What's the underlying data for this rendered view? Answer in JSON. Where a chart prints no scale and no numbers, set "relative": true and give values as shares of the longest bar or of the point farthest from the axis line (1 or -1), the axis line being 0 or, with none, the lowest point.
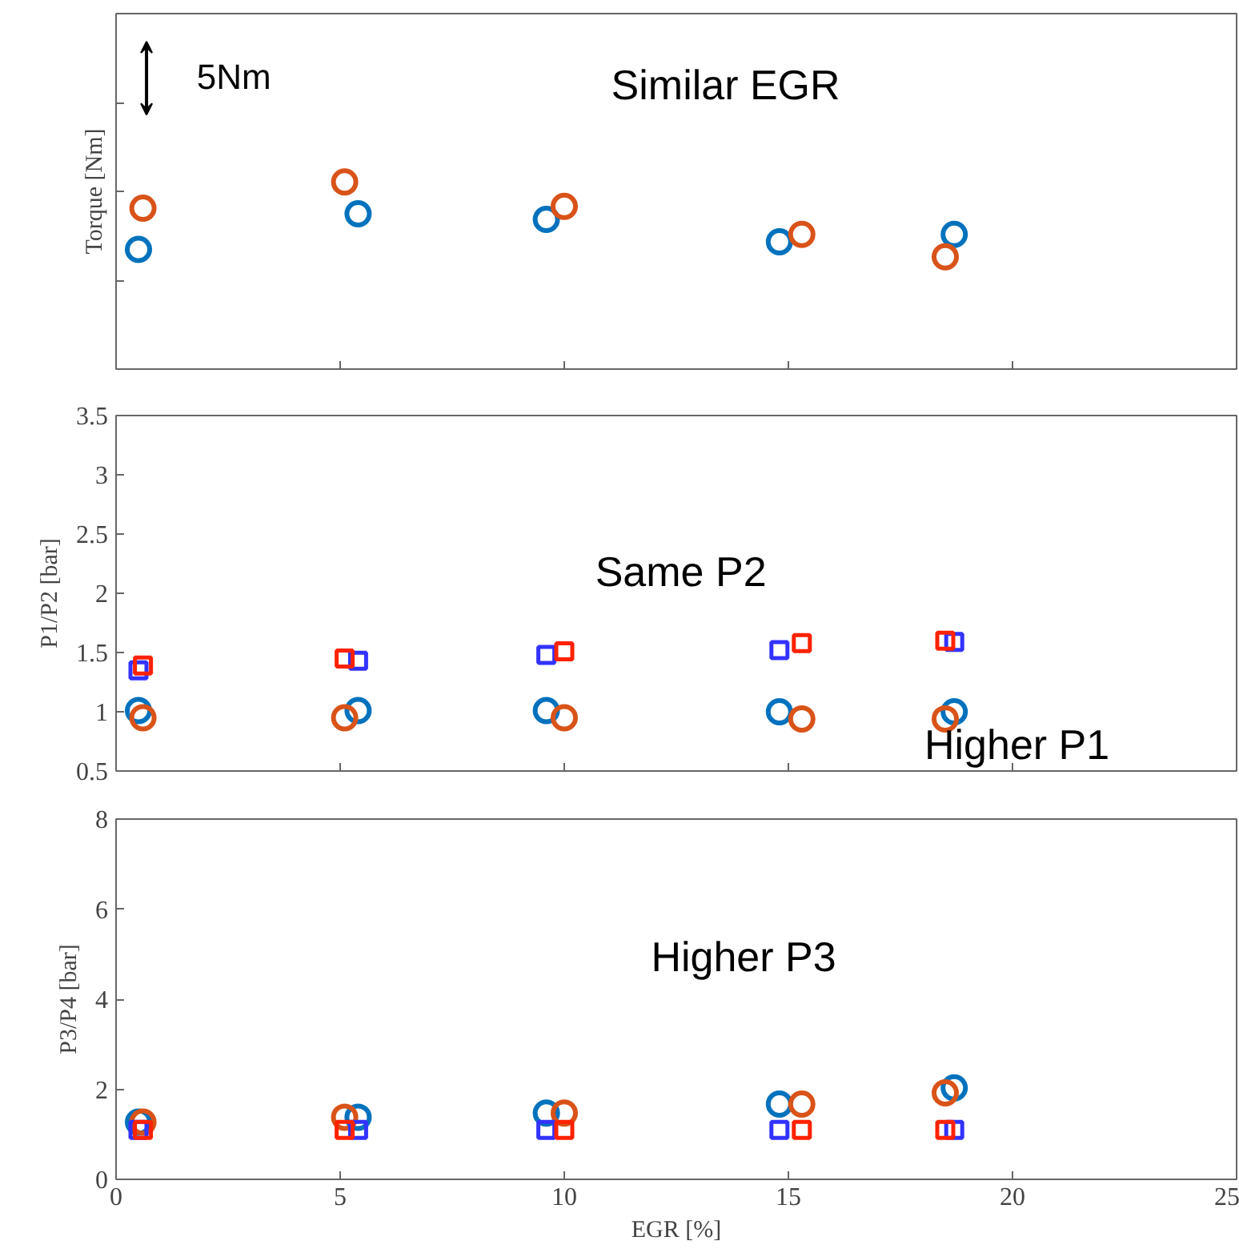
{
  "chart_data": [
    {
      "type": "scatter",
      "ylabel": "Torque [Nm]",
      "relative": true,
      "xlim": [
        0,
        25
      ],
      "xticks": [
        0,
        5,
        10,
        15,
        20,
        25
      ],
      "tick_labels": false,
      "grid": false,
      "annotations": [
        "Similar EGR",
        "5Nm"
      ],
      "series": [
        {
          "color": "#0072bd",
          "marker": "circle",
          "x": [
            0.5,
            5.4,
            9.6,
            14.8,
            18.7
          ],
          "values": [
            0.64,
            0.83,
            0.8,
            0.68,
            0.72
          ]
        },
        {
          "color": "#d95319",
          "marker": "circle",
          "x": [
            0.6,
            5.1,
            10.0,
            15.3,
            18.5
          ],
          "values": [
            0.86,
            1.0,
            0.87,
            0.72,
            0.6
          ]
        }
      ]
    },
    {
      "type": "scatter",
      "ylabel": "P1/P2 [bar]",
      "xlim": [
        0,
        25
      ],
      "xticks": [
        0,
        5,
        10,
        15,
        20,
        25
      ],
      "ylim": [
        0.5,
        3.5
      ],
      "yticks": [
        0.5,
        1,
        1.5,
        2,
        2.5,
        3,
        3.5
      ],
      "tick_labels": "y",
      "grid": false,
      "annotations": [
        "Same P2",
        "Higher P1"
      ],
      "series": [
        {
          "color": "#0072bd",
          "marker": "circle",
          "x": [
            0.5,
            5.4,
            9.6,
            14.8,
            18.7
          ],
          "values": [
            1.01,
            1.01,
            1.01,
            1.0,
            1.0
          ]
        },
        {
          "color": "#d95319",
          "marker": "circle",
          "x": [
            0.6,
            5.1,
            10.0,
            15.3,
            18.5
          ],
          "values": [
            0.95,
            0.95,
            0.95,
            0.94,
            0.94
          ]
        },
        {
          "color": "#3333ff",
          "marker": "square",
          "x": [
            0.5,
            5.4,
            9.6,
            14.8,
            18.7
          ],
          "values": [
            1.35,
            1.43,
            1.48,
            1.52,
            1.59
          ]
        },
        {
          "color": "#ff2200",
          "marker": "square",
          "x": [
            0.6,
            5.1,
            10.0,
            15.3,
            18.5
          ],
          "values": [
            1.39,
            1.45,
            1.51,
            1.58,
            1.6
          ]
        }
      ]
    },
    {
      "type": "scatter",
      "xlabel": "EGR [%]",
      "ylabel": "P3/P4 [bar]",
      "xlim": [
        0,
        25
      ],
      "xticks": [
        0,
        5,
        10,
        15,
        20,
        25
      ],
      "ylim": [
        0,
        8
      ],
      "yticks": [
        0,
        2,
        4,
        6,
        8
      ],
      "grid": false,
      "annotations": [
        "Higher P3"
      ],
      "series": [
        {
          "color": "#0072bd",
          "marker": "circle",
          "x": [
            0.5,
            5.4,
            9.6,
            14.8,
            18.7
          ],
          "values": [
            1.27,
            1.38,
            1.47,
            1.67,
            2.03
          ]
        },
        {
          "color": "#d95319",
          "marker": "circle",
          "x": [
            0.6,
            5.1,
            10.0,
            15.3,
            18.5
          ],
          "values": [
            1.27,
            1.38,
            1.47,
            1.67,
            1.92
          ]
        },
        {
          "color": "#3333ff",
          "marker": "square",
          "x": [
            0.5,
            5.4,
            9.6,
            14.8,
            18.7
          ],
          "values": [
            1.1,
            1.1,
            1.1,
            1.1,
            1.1
          ]
        },
        {
          "color": "#ff2200",
          "marker": "square",
          "x": [
            0.6,
            5.1,
            10.0,
            15.3,
            18.5
          ],
          "values": [
            1.1,
            1.1,
            1.1,
            1.1,
            1.1
          ]
        }
      ]
    }
  ]
}
